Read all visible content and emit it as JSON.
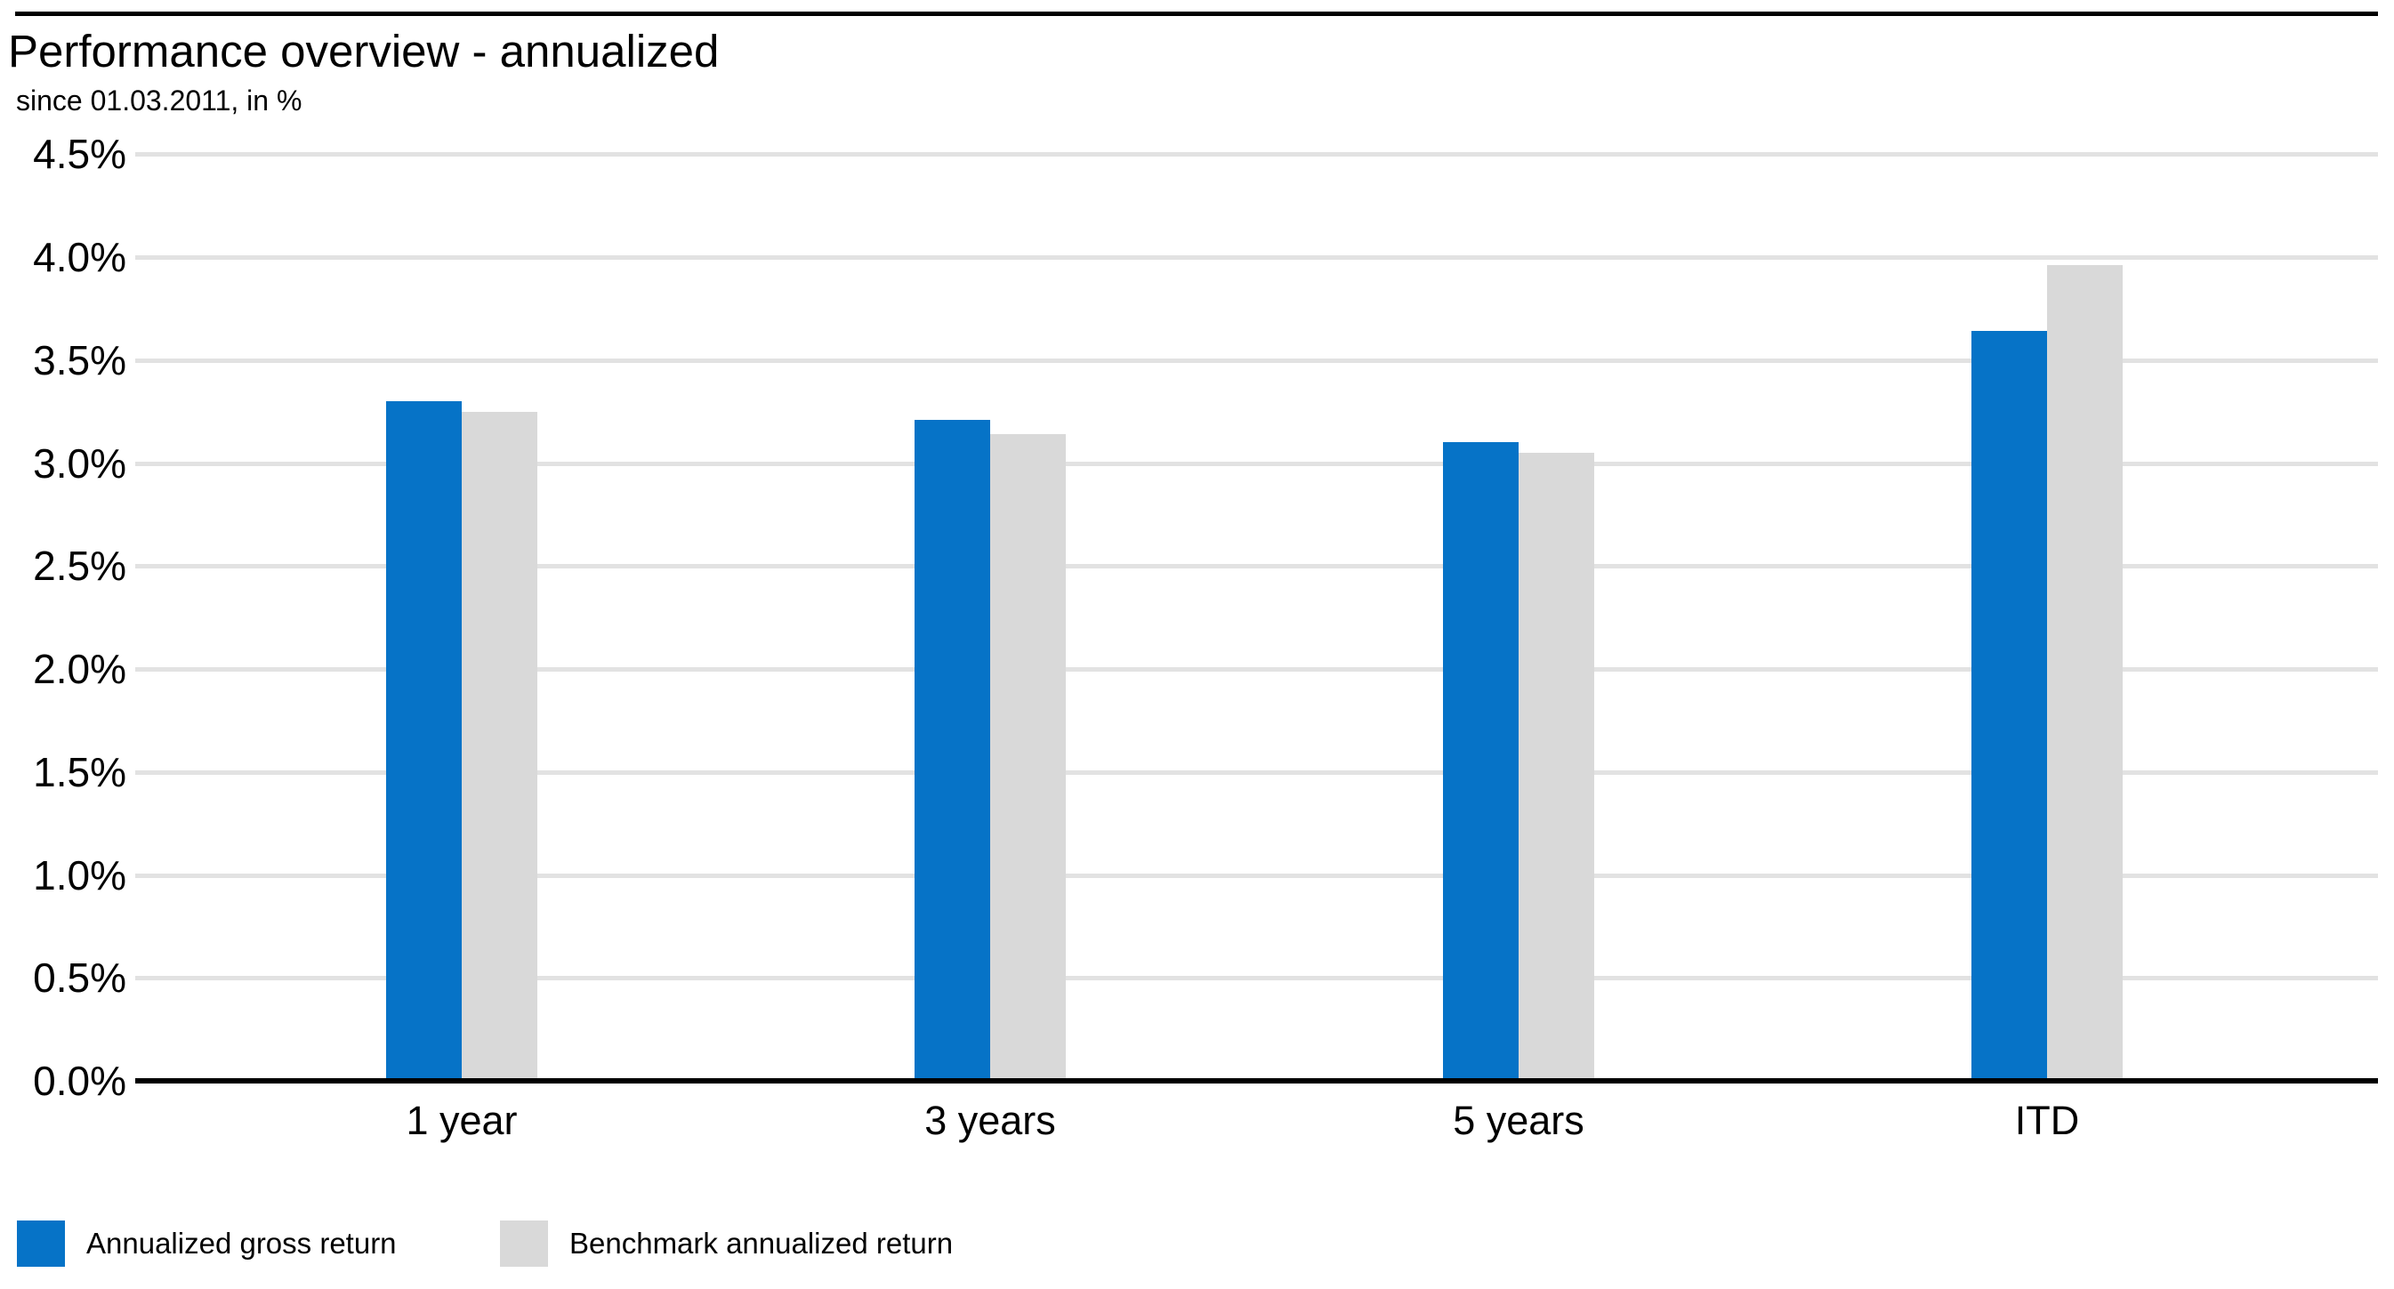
{
  "header": {
    "title": "Performance overview - annualized",
    "subtitle": "since 01.03.2011, in %"
  },
  "chart_data": {
    "type": "bar",
    "title": "Performance overview - annualized",
    "subtitle": "since 01.03.2011, in %",
    "categories": [
      "1 year",
      "3 years",
      "5 years",
      "ITD"
    ],
    "series": [
      {
        "name": "Annualized gross return",
        "color": "#0673c7",
        "values": [
          3.3,
          3.21,
          3.1,
          3.64
        ]
      },
      {
        "name": "Benchmark annualized return",
        "color": "#d9d9d9",
        "values": [
          3.25,
          3.14,
          3.05,
          3.96
        ]
      }
    ],
    "xlabel": "",
    "ylabel": "",
    "ylim": [
      0,
      4.5
    ],
    "ytick_step": 0.5,
    "ytick_labels": [
      "0.0%",
      "0.5%",
      "1.0%",
      "1.5%",
      "2.0%",
      "2.5%",
      "3.0%",
      "3.5%",
      "4.0%",
      "4.5%"
    ],
    "grid": "horizontal",
    "legend_position": "bottom-left",
    "colors": {
      "axis": "#000000",
      "gridline": "#e2e2e2",
      "background": "#ffffff",
      "text": "#000000"
    }
  }
}
